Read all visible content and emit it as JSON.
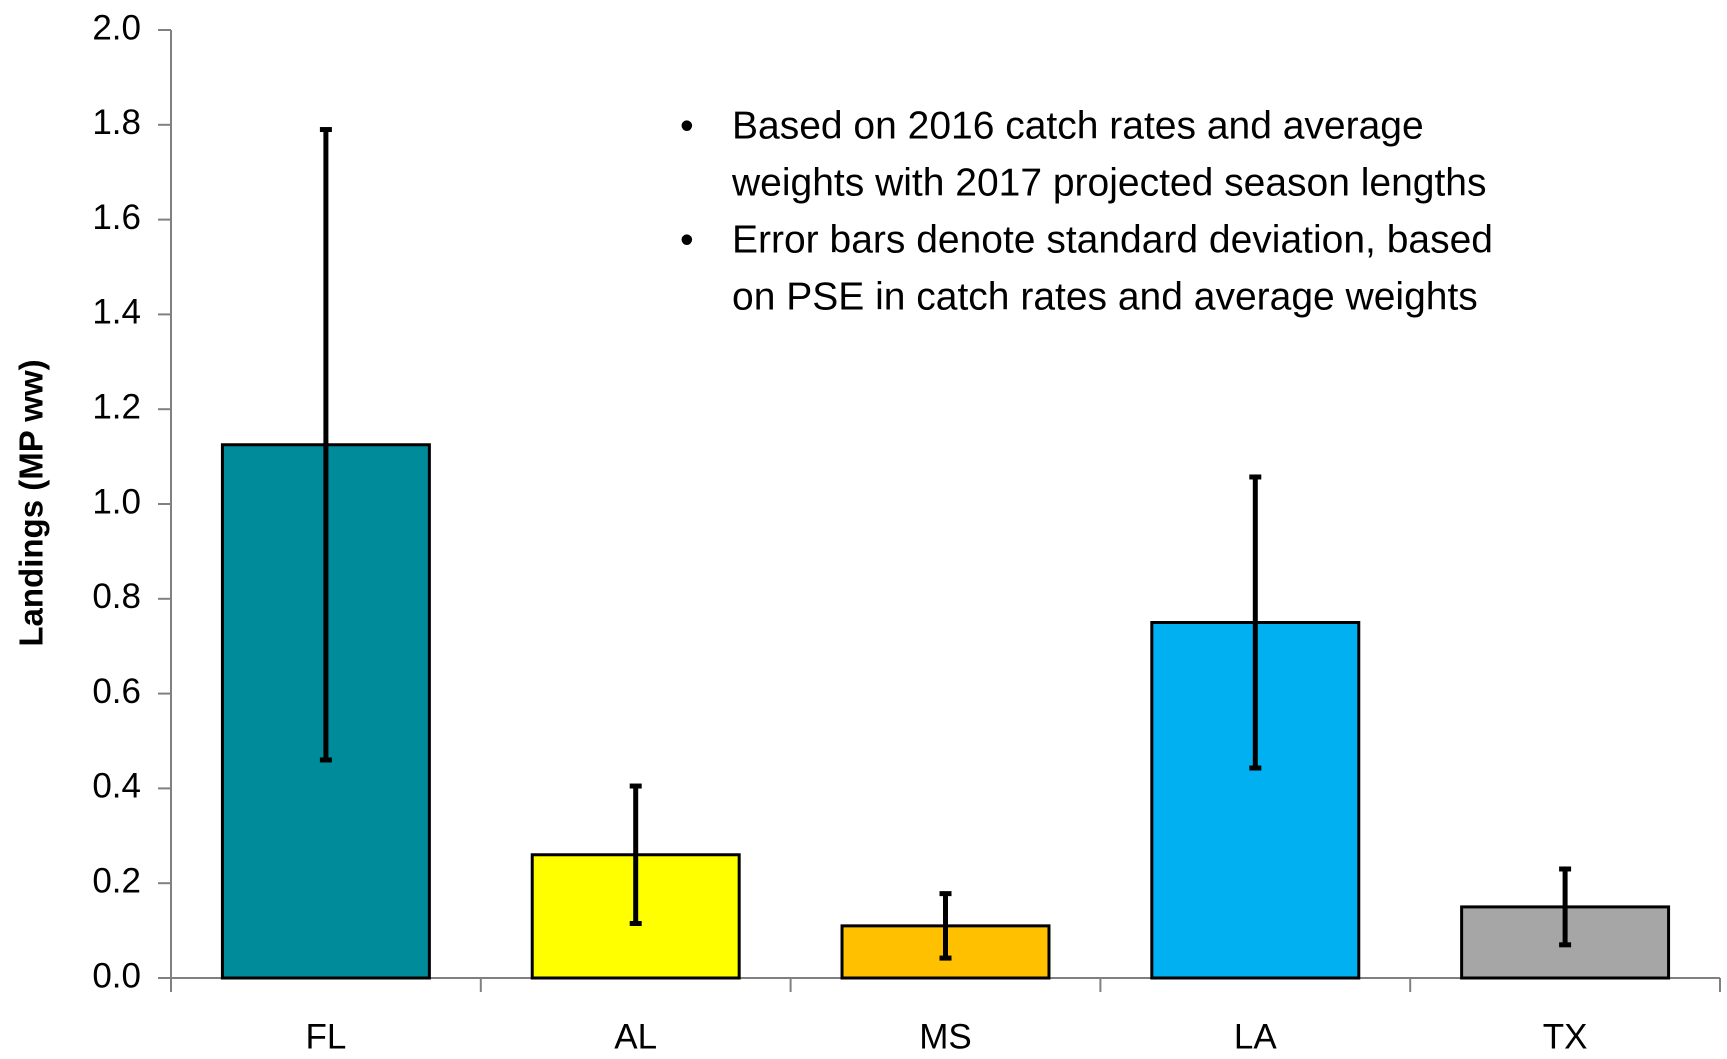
{
  "chart_data": {
    "type": "bar",
    "y_label": "Landings (MP ww)",
    "categories": [
      "FL",
      "AL",
      "MS",
      "LA",
      "TX"
    ],
    "values": [
      1.125,
      0.26,
      0.11,
      0.75,
      0.15
    ],
    "errors": [
      0.665,
      0.145,
      0.068,
      0.307,
      0.08
    ],
    "colors": [
      "#008b9b",
      "#ffff00",
      "#ffc000",
      "#00b0f0",
      "#a6a6a6"
    ],
    "ylim": [
      0,
      2.0
    ],
    "yticks": [
      {
        "value": 0,
        "label": "0.0"
      },
      0.2,
      0.4,
      0.6,
      0.8,
      {
        "value": 1.0,
        "label": "1.0"
      },
      1.2,
      1.4,
      1.6,
      1.8,
      {
        "value": 2.0,
        "label": "2.0"
      }
    ],
    "grid": false,
    "annotations": [
      [
        "Based on 2016 catch rates and average",
        "weights with 2017 projected season lengths"
      ],
      [
        "Error bars denote standard deviation, based",
        "on PSE in catch rates and average weights"
      ]
    ]
  }
}
